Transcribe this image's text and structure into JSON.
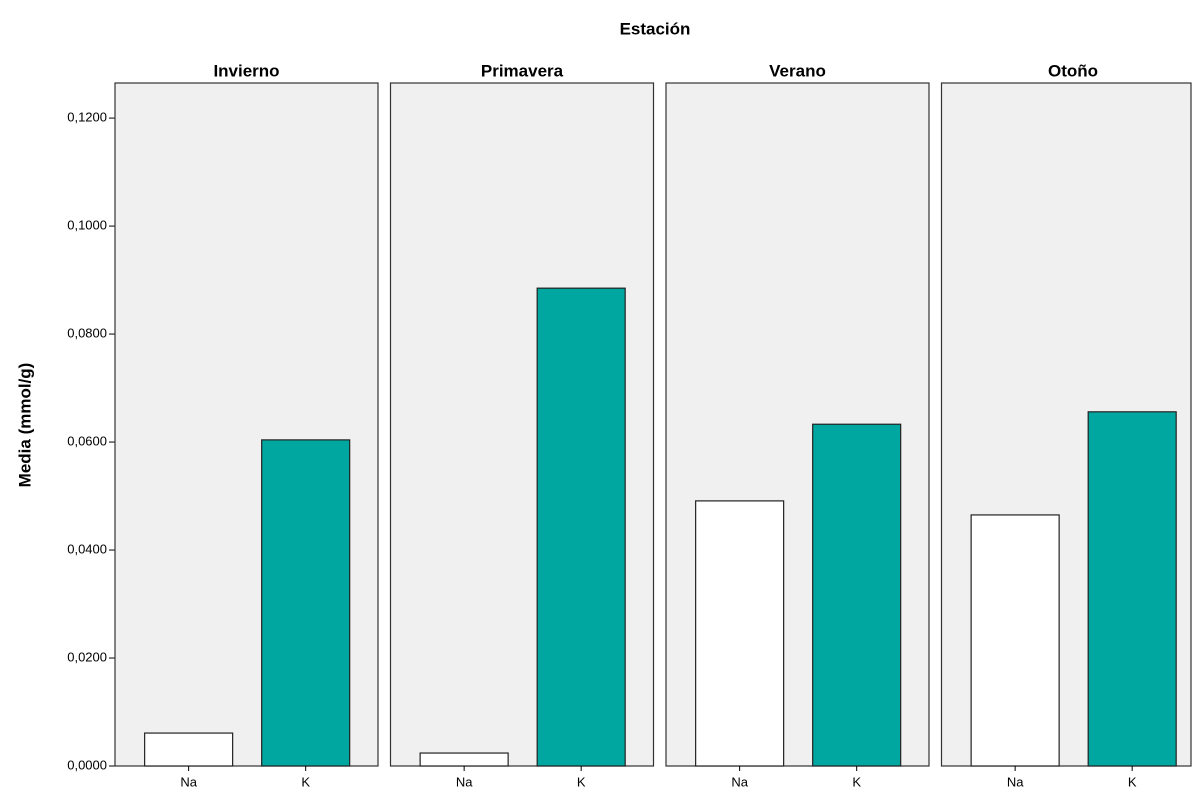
{
  "chart_data": {
    "type": "bar",
    "title": "Estación",
    "ylabel": "Media (mmol/g)",
    "categories": [
      "Na",
      "K"
    ],
    "colors": [
      "#ffffff",
      "#00a6a0"
    ],
    "facets": [
      {
        "title": "Invierno",
        "values": [
          0.0061,
          0.0604
        ]
      },
      {
        "title": "Primavera",
        "values": [
          0.0024,
          0.0885
        ]
      },
      {
        "title": "Verano",
        "values": [
          0.0491,
          0.0633
        ]
      },
      {
        "title": "Otoño",
        "values": [
          0.0465,
          0.0656
        ]
      }
    ],
    "ylim": [
      0,
      0.1265
    ],
    "yticks": [
      {
        "value": 0,
        "label": "0,0000"
      },
      {
        "value": 0.02,
        "label": "0,0200"
      },
      {
        "value": 0.04,
        "label": "0,0400"
      },
      {
        "value": 0.06,
        "label": "0,0600"
      },
      {
        "value": 0.08,
        "label": "0,0800"
      },
      {
        "value": 0.1,
        "label": "0,1000"
      },
      {
        "value": 0.12,
        "label": "0,1200"
      }
    ]
  }
}
